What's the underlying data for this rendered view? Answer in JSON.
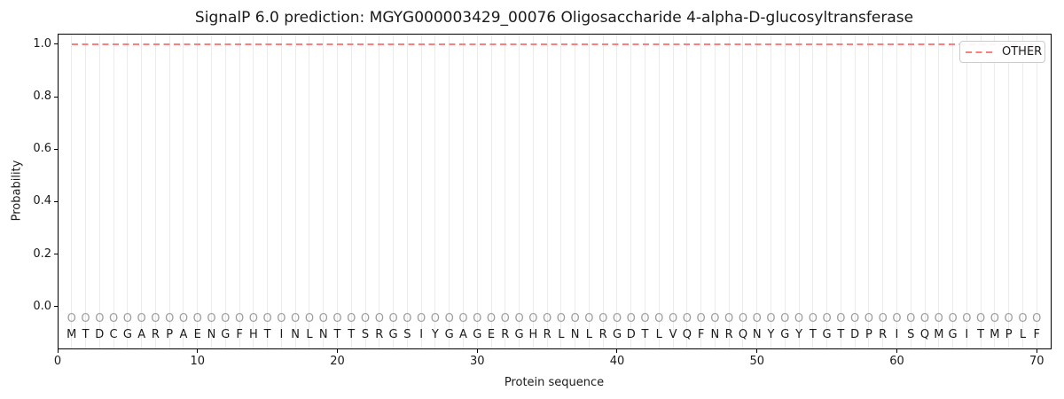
{
  "figure": {
    "title": "SignalP 6.0 prediction: MGYG000003429_00076 Oligosaccharide 4-alpha-D-glucosyltransferase"
  },
  "chart_data": {
    "type": "line",
    "title": "SignalP 6.0 prediction: MGYG000003429_00076 Oligosaccharide 4-alpha-D-glucosyltransferase",
    "xlabel": "Protein sequence",
    "ylabel": "Probability",
    "xlim": [
      0,
      71
    ],
    "ylim": [
      -0.16,
      1.04
    ],
    "x_ticks": [
      0,
      10,
      20,
      30,
      40,
      50,
      60,
      70
    ],
    "y_ticks": [
      "0.0",
      "0.2",
      "0.4",
      "0.6",
      "0.8",
      "1.0"
    ],
    "grid": "light vertical gridline at every residue position 1-70",
    "legend": {
      "position": "upper right",
      "entries": [
        {
          "label": "OTHER",
          "color": "#f98080",
          "line_style": "dashed"
        }
      ]
    },
    "series": [
      {
        "name": "OTHER",
        "color": "#f98080",
        "line_style": "dashed",
        "x_start": 1,
        "x_end": 70,
        "y_constant": 1.0,
        "description": "flat dashed line at probability 1.0 across residues 1-70"
      }
    ],
    "sequence": "MTDCGARPAENGFHTINLNTTSRGSIYGAGERGHRLNLRGDTLVQFNRQNYGYTGTDPRISQMGITMPLF",
    "sequence_length": 70,
    "sequence_label_y": -0.11,
    "residue_markers": {
      "symbol": "O",
      "y": -0.05,
      "color": "#9e9e9e",
      "applies_to": "every residue 1-70"
    }
  },
  "colors": {
    "figure_background": "#ffffff",
    "other_line": "#f98080",
    "grid": "#ebebeb",
    "marker": "#9e9e9e",
    "letter": "#1a1a1a",
    "spine": "#000000",
    "legend_border": "#cccccc"
  }
}
